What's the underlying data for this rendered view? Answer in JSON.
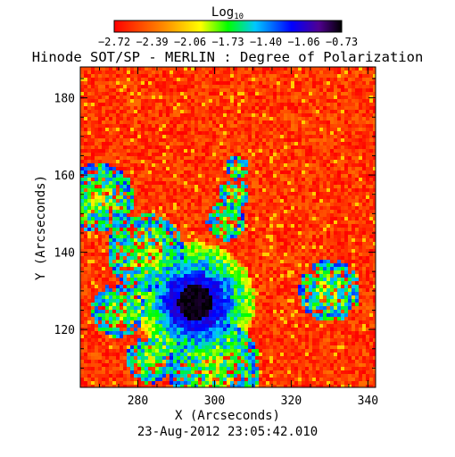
{
  "chart_data": {
    "type": "heatmap",
    "title": "Hinode SOT/SP - MERLIN : Degree of Polarization",
    "colorbar": {
      "label_base": "Log",
      "label_sub": "10",
      "ticks": [
        "−2.72",
        "−2.39",
        "−2.06",
        "−1.73",
        "−1.40",
        "−1.06",
        "−0.73"
      ],
      "range": [
        -2.72,
        -0.73
      ],
      "colors": [
        "#ff0000",
        "#ff8000",
        "#ffff00",
        "#00ff00",
        "#00c0ff",
        "#0000ff",
        "#400080",
        "#000000"
      ]
    },
    "xlabel": "X (Arcseconds)",
    "ylabel": "Y (Arcseconds)",
    "xlim": [
      265,
      342
    ],
    "ylim": [
      105,
      188
    ],
    "xticks": [
      280,
      300,
      320,
      340
    ],
    "yticks": [
      120,
      140,
      160,
      180
    ],
    "features": {
      "sunspot_center": [
        295,
        127
      ],
      "sunspot_umbra_radius": 4.5,
      "background_log": -2.55,
      "umbra_log": -0.75
    }
  },
  "footer": {
    "timestamp": "23-Aug-2012 23:05:42.010"
  }
}
